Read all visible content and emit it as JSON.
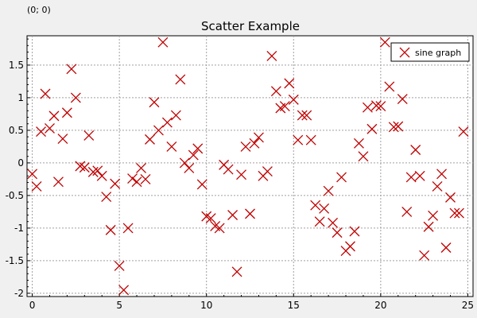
{
  "status": {
    "coordinate_readout": "(0; 0)"
  },
  "chart_data": {
    "type": "scatter",
    "title": "Scatter Example",
    "xlabel": "",
    "ylabel": "",
    "xlim": [
      -0.3,
      25.3
    ],
    "ylim": [
      -2.05,
      1.95
    ],
    "x_ticks": [
      "0",
      "5",
      "10",
      "15",
      "20",
      "25"
    ],
    "y_ticks": [
      "-2",
      "-1.5",
      "-1",
      "-0.5",
      "0",
      "0.5",
      "1",
      "1.5"
    ],
    "grid": true,
    "legend_position": "top-right",
    "marker_color": "#c00000",
    "marker": "x",
    "series": [
      {
        "name": "sine graph",
        "points": [
          [
            0.0,
            -0.17
          ],
          [
            0.25,
            -0.36
          ],
          [
            0.5,
            0.48
          ],
          [
            0.75,
            1.06
          ],
          [
            1.0,
            0.53
          ],
          [
            1.25,
            0.72
          ],
          [
            1.5,
            -0.29
          ],
          [
            1.75,
            0.37
          ],
          [
            2.0,
            0.77
          ],
          [
            2.25,
            1.44
          ],
          [
            2.5,
            1.0
          ],
          [
            2.75,
            -0.05
          ],
          [
            3.0,
            -0.07
          ],
          [
            3.25,
            0.42
          ],
          [
            3.5,
            -0.14
          ],
          [
            3.75,
            -0.12
          ],
          [
            4.0,
            -0.2
          ],
          [
            4.25,
            -0.52
          ],
          [
            4.5,
            -1.03
          ],
          [
            4.75,
            -0.32
          ],
          [
            5.0,
            -1.58
          ],
          [
            5.25,
            -1.95
          ],
          [
            5.5,
            -1.0
          ],
          [
            5.75,
            -0.24
          ],
          [
            6.0,
            -0.29
          ],
          [
            6.25,
            -0.08
          ],
          [
            6.5,
            -0.25
          ],
          [
            6.75,
            0.36
          ],
          [
            7.0,
            0.93
          ],
          [
            7.25,
            0.5
          ],
          [
            7.5,
            1.85
          ],
          [
            7.75,
            0.62
          ],
          [
            8.0,
            0.25
          ],
          [
            8.25,
            0.73
          ],
          [
            8.5,
            1.28
          ],
          [
            8.75,
            0.0
          ],
          [
            9.0,
            -0.08
          ],
          [
            9.25,
            0.12
          ],
          [
            9.5,
            0.22
          ],
          [
            9.75,
            -0.33
          ],
          [
            10.0,
            -0.82
          ],
          [
            10.25,
            -0.85
          ],
          [
            10.5,
            -0.97
          ],
          [
            10.75,
            -1.0
          ],
          [
            11.0,
            -0.03
          ],
          [
            11.25,
            -0.1
          ],
          [
            11.5,
            -0.8
          ],
          [
            11.75,
            -1.67
          ],
          [
            12.0,
            -0.18
          ],
          [
            12.25,
            0.25
          ],
          [
            12.5,
            -0.78
          ],
          [
            12.75,
            0.3
          ],
          [
            13.0,
            0.39
          ],
          [
            13.25,
            -0.2
          ],
          [
            13.5,
            -0.13
          ],
          [
            13.75,
            1.64
          ],
          [
            14.0,
            1.1
          ],
          [
            14.25,
            0.84
          ],
          [
            14.5,
            0.87
          ],
          [
            14.75,
            1.22
          ],
          [
            15.0,
            0.97
          ],
          [
            15.25,
            0.35
          ],
          [
            15.5,
            0.73
          ],
          [
            15.75,
            0.73
          ],
          [
            16.0,
            0.35
          ],
          [
            16.25,
            -0.65
          ],
          [
            16.5,
            -0.9
          ],
          [
            16.75,
            -0.7
          ],
          [
            17.0,
            -0.43
          ],
          [
            17.25,
            -0.92
          ],
          [
            17.5,
            -1.07
          ],
          [
            17.75,
            -0.22
          ],
          [
            18.0,
            -1.35
          ],
          [
            18.25,
            -1.28
          ],
          [
            18.5,
            -1.05
          ],
          [
            18.75,
            0.3
          ],
          [
            19.0,
            0.1
          ],
          [
            19.25,
            0.85
          ],
          [
            19.5,
            0.52
          ],
          [
            19.75,
            0.88
          ],
          [
            20.0,
            0.87
          ],
          [
            20.25,
            1.85
          ],
          [
            20.5,
            1.17
          ],
          [
            20.75,
            0.55
          ],
          [
            21.0,
            0.56
          ],
          [
            21.25,
            0.98
          ],
          [
            21.5,
            -0.75
          ],
          [
            21.75,
            -0.22
          ],
          [
            22.0,
            0.2
          ],
          [
            22.25,
            -0.2
          ],
          [
            22.5,
            -1.42
          ],
          [
            22.75,
            -0.98
          ],
          [
            23.0,
            -0.81
          ],
          [
            23.25,
            -0.36
          ],
          [
            23.5,
            -0.17
          ],
          [
            23.75,
            -1.3
          ],
          [
            24.0,
            -0.53
          ],
          [
            24.25,
            -0.77
          ],
          [
            24.5,
            -0.77
          ],
          [
            24.75,
            0.48
          ]
        ]
      }
    ]
  }
}
